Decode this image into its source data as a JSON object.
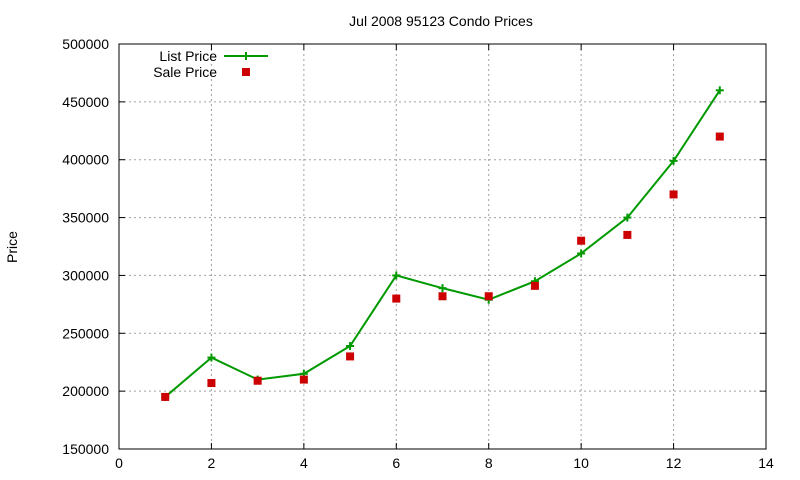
{
  "chart_data": {
    "type": "line",
    "title": "Jul 2008 95123 Condo Prices",
    "xlabel": "",
    "ylabel": "Price",
    "xlim": [
      0,
      14
    ],
    "ylim": [
      150000,
      500000
    ],
    "x_ticks": [
      0,
      2,
      4,
      6,
      8,
      10,
      12,
      14
    ],
    "y_ticks": [
      150000,
      200000,
      250000,
      300000,
      350000,
      400000,
      450000,
      500000
    ],
    "grid": true,
    "legend_position": "top-left",
    "series": [
      {
        "name": "List Price",
        "style": "line+cross",
        "color": "#009900",
        "x": [
          1,
          2,
          3,
          4,
          5,
          6,
          7,
          8,
          9,
          10,
          11,
          12,
          13
        ],
        "values": [
          195000,
          229000,
          210000,
          215000,
          239000,
          300000,
          289000,
          279000,
          295000,
          319000,
          350000,
          399000,
          460000
        ]
      },
      {
        "name": "Sale Price",
        "style": "square",
        "color": "#cc0000",
        "x": [
          1,
          2,
          3,
          4,
          5,
          6,
          7,
          8,
          9,
          10,
          11,
          12,
          13
        ],
        "values": [
          195000,
          207000,
          209000,
          210000,
          230000,
          280000,
          282000,
          282000,
          291000,
          330000,
          335000,
          370000,
          420000
        ]
      }
    ]
  }
}
